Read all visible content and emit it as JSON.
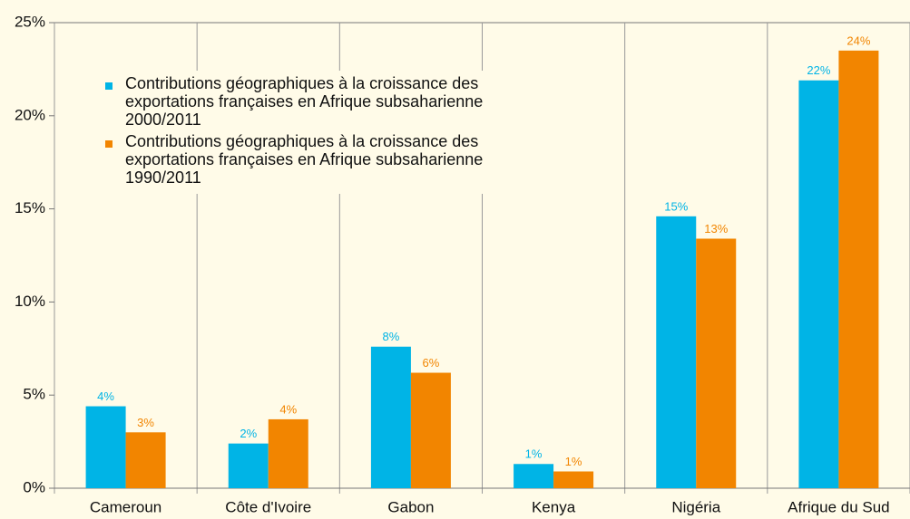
{
  "chart_data": {
    "type": "bar",
    "categories": [
      "Cameroun",
      "Côte d'Ivoire",
      "Gabon",
      "Kenya",
      "Nigéria",
      "Afrique du Sud"
    ],
    "series": [
      {
        "name": "Contributions géographiques à la croissance des exportations françaises en Afrique subsaharienne 2000/2011",
        "color": "#00b4e6",
        "values": [
          4.4,
          2.4,
          7.6,
          1.3,
          14.6,
          21.9
        ],
        "value_labels": [
          "4%",
          "2%",
          "8%",
          "1%",
          "15%",
          "22%"
        ]
      },
      {
        "name": "Contributions géographiques à la croissance des exportations françaises en Afrique subsaharienne 1990/2011",
        "color": "#f28500",
        "values": [
          3.0,
          3.7,
          6.2,
          0.9,
          13.4,
          23.5
        ],
        "value_labels": [
          "3%",
          "4%",
          "6%",
          "1%",
          "13%",
          "24%"
        ]
      }
    ],
    "ylim": [
      0,
      25
    ],
    "yticks": [
      {
        "value": 0,
        "label": "0%"
      },
      {
        "value": 5,
        "label": "5%"
      },
      {
        "value": 10,
        "label": "10%"
      },
      {
        "value": 15,
        "label": "15%"
      },
      {
        "value": 20,
        "label": "20%"
      },
      {
        "value": 25,
        "label": "25%"
      }
    ]
  }
}
